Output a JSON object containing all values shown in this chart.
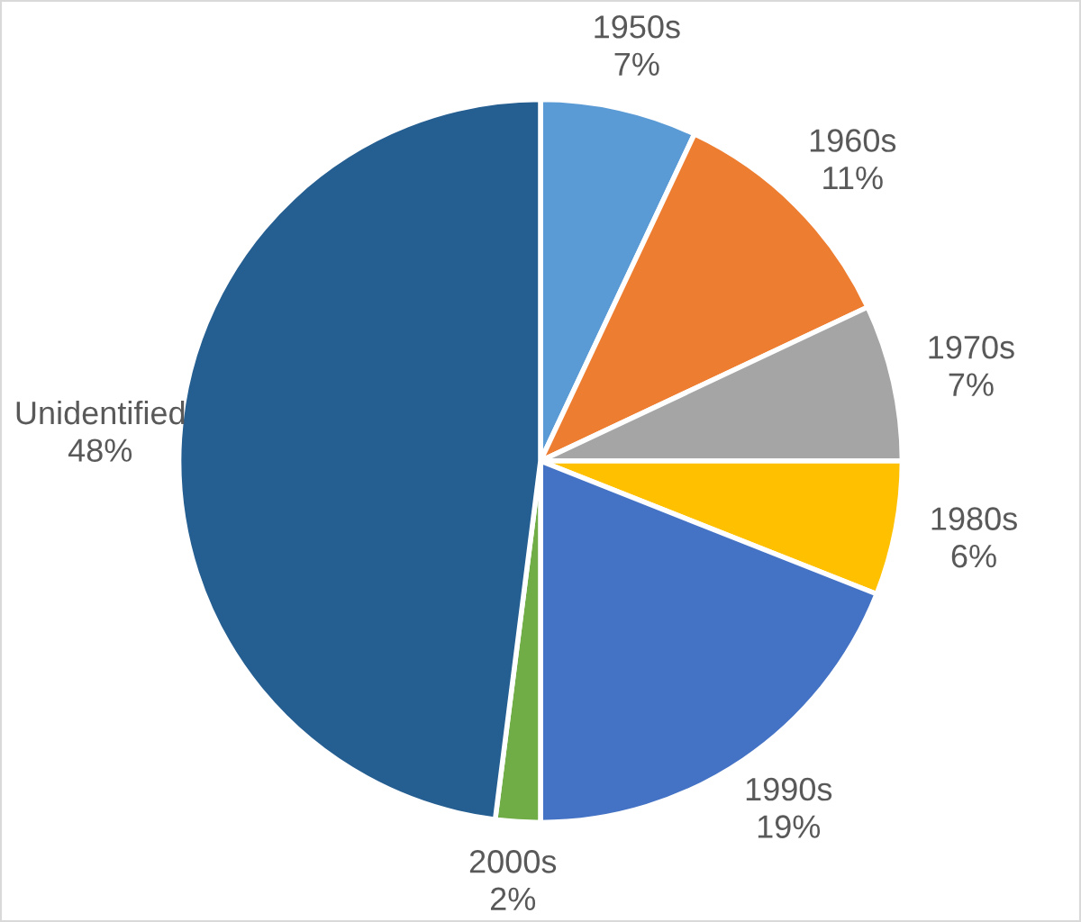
{
  "chart_data": {
    "type": "pie",
    "categories": [
      "1950s",
      "1960s",
      "1970s",
      "1980s",
      "1990s",
      "2000s",
      "Unidentified"
    ],
    "values": [
      7,
      11,
      7,
      6,
      19,
      2,
      48
    ],
    "colors": [
      "#5b9bd5",
      "#ed7d31",
      "#a5a5a5",
      "#ffc000",
      "#4472c4",
      "#70ad47",
      "#255e91"
    ],
    "value_labels": [
      "7%",
      "11%",
      "7%",
      "6%",
      "19%",
      "2%",
      "48%"
    ]
  }
}
